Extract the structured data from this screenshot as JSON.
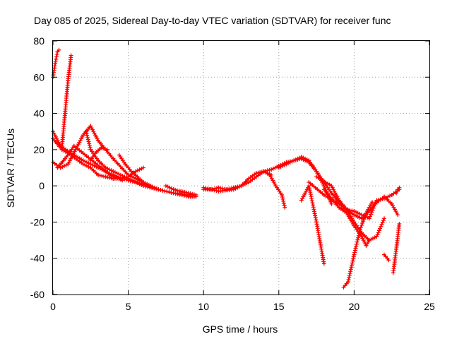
{
  "chart_data": {
    "type": "scatter",
    "title": "Day 085 of 2025, Sidereal Day-to-day VTEC variation (SDTVAR) for receiver func",
    "xlabel": "GPS time / hours",
    "ylabel": "SDTVAR / TECUs",
    "xlim": [
      0,
      25
    ],
    "ylim": [
      -60,
      80
    ],
    "xticks": [
      0,
      5,
      10,
      15,
      20,
      25
    ],
    "yticks": [
      -60,
      -40,
      -20,
      0,
      20,
      40,
      60,
      80
    ],
    "grid": true,
    "legend": "none",
    "marker": "plus",
    "color": "#ff0000",
    "series": [
      {
        "name": "s1",
        "x": [
          0.0,
          0.1,
          0.2,
          0.3,
          0.4
        ],
        "y": [
          60,
          65,
          70,
          74,
          75
        ]
      },
      {
        "name": "s2",
        "x": [
          0.6,
          0.8,
          1.0,
          1.2
        ],
        "y": [
          22,
          40,
          58,
          72
        ]
      },
      {
        "name": "s3",
        "x": [
          0.0,
          0.5,
          1.2,
          2.0,
          3.0,
          4.0,
          5.0,
          6.0,
          7.0,
          8.0,
          9.0,
          9.5
        ],
        "y": [
          30,
          22,
          18,
          14,
          10,
          6,
          3,
          1,
          -2,
          -4,
          -5,
          -5
        ]
      },
      {
        "name": "s4",
        "x": [
          0.0,
          0.6,
          1.2,
          2.0,
          2.5,
          3.0,
          3.5,
          4.0,
          4.5,
          5.0,
          5.5,
          6.0
        ],
        "y": [
          26,
          20,
          17,
          12,
          10,
          6,
          5,
          4,
          4,
          5,
          8,
          10
        ]
      },
      {
        "name": "s5",
        "x": [
          0.0,
          0.5,
          1.0,
          1.5,
          2.0,
          2.5,
          3.0,
          4.0,
          5.0,
          6.0
        ],
        "y": [
          13,
          10,
          12,
          20,
          28,
          33,
          25,
          15,
          6,
          2
        ]
      },
      {
        "name": "s6",
        "x": [
          0.3,
          0.8,
          1.4,
          2.0,
          2.6,
          3.2,
          3.8,
          4.4,
          4.6
        ],
        "y": [
          10,
          15,
          22,
          18,
          14,
          10,
          6,
          4,
          3
        ]
      },
      {
        "name": "s7",
        "x": [
          2.2,
          2.5,
          3.0,
          3.5,
          4.0,
          5.0,
          6.0,
          7.0
        ],
        "y": [
          30,
          20,
          14,
          10,
          8,
          4,
          0,
          -2
        ]
      },
      {
        "name": "s8",
        "x": [
          2.5,
          2.8,
          3.2,
          3.6
        ],
        "y": [
          14,
          18,
          21,
          20
        ]
      },
      {
        "name": "s9",
        "x": [
          4.4,
          4.8,
          5.2,
          5.6,
          6.0,
          7.0,
          8.0,
          9.0,
          9.5
        ],
        "y": [
          17,
          12,
          8,
          5,
          2,
          -2,
          -4,
          -6,
          -6
        ]
      },
      {
        "name": "s10",
        "x": [
          7.5,
          8.0,
          8.5,
          9.0,
          9.5
        ],
        "y": [
          0,
          -2,
          -3,
          -4,
          -5
        ]
      },
      {
        "name": "s11",
        "x": [
          10.0,
          10.5,
          11.0,
          11.5,
          12.0,
          12.5,
          13.0,
          13.5,
          14.0,
          14.5,
          15.0,
          15.5,
          16.0,
          16.5,
          17.0,
          17.5,
          18.0,
          18.5
        ],
        "y": [
          -2,
          -2,
          -1,
          -2,
          -1,
          0,
          2,
          5,
          8,
          9,
          11,
          13,
          14,
          15,
          13,
          8,
          0,
          -10
        ]
      },
      {
        "name": "s12",
        "x": [
          10.0,
          11.0,
          12.0,
          12.5,
          13.0,
          13.5,
          14.0,
          14.5
        ],
        "y": [
          -1,
          -3,
          -2,
          0,
          4,
          7,
          8,
          6
        ]
      },
      {
        "name": "s13",
        "x": [
          13.5,
          14.0,
          14.4,
          14.8,
          15.2,
          15.4
        ],
        "y": [
          5,
          8,
          6,
          0,
          -5,
          -12
        ]
      },
      {
        "name": "s14",
        "x": [
          15.0,
          15.5,
          16.0,
          16.5,
          17.0,
          17.5,
          18.0,
          18.5,
          19.0,
          19.5,
          20.0,
          20.5
        ],
        "y": [
          10,
          12,
          14,
          16,
          14,
          8,
          2,
          -4,
          -9,
          -13,
          -16,
          -18
        ]
      },
      {
        "name": "s15",
        "x": [
          16.5,
          17.0,
          17.5,
          18.0
        ],
        "y": [
          -8,
          0,
          -20,
          -43
        ]
      },
      {
        "name": "s16",
        "x": [
          17.5,
          18.5,
          19.0,
          19.5,
          20.0,
          20.5,
          21.0,
          21.5,
          22.0,
          22.5,
          23.0
        ],
        "y": [
          5,
          0,
          -8,
          -13,
          -16,
          -18,
          -14,
          -8,
          -7,
          -5,
          -2
        ]
      },
      {
        "name": "s17",
        "x": [
          17.0,
          18.0,
          19.0,
          19.5,
          20.0,
          20.5,
          21.0,
          21.5,
          22.0
        ],
        "y": [
          2,
          -5,
          -10,
          -13,
          -20,
          -26,
          -30,
          -28,
          -18
        ]
      },
      {
        "name": "s18",
        "x": [
          18.0,
          19.0,
          20.0,
          21.0,
          21.4,
          22.0,
          22.5,
          22.9
        ],
        "y": [
          -2,
          -12,
          -14,
          -18,
          -10,
          -6,
          -10,
          -16
        ]
      },
      {
        "name": "s19",
        "x": [
          19.3,
          19.6,
          20.0,
          20.4,
          20.8,
          21.2
        ],
        "y": [
          -56,
          -53,
          -38,
          -24,
          -15,
          -9
        ]
      },
      {
        "name": "s20",
        "x": [
          19.0,
          19.5,
          20.0,
          20.5,
          20.8,
          21.0
        ],
        "y": [
          -12,
          -15,
          -22,
          -28,
          -33,
          -30
        ]
      },
      {
        "name": "s21",
        "x": [
          22.0,
          22.3
        ],
        "y": [
          -38,
          -41
        ]
      },
      {
        "name": "s22",
        "x": [
          22.6,
          22.8,
          23.0
        ],
        "y": [
          -48,
          -35,
          -21
        ]
      },
      {
        "name": "s23",
        "x": [
          22.8,
          22.9,
          23.0
        ],
        "y": [
          -4,
          -2,
          -1
        ]
      }
    ]
  }
}
